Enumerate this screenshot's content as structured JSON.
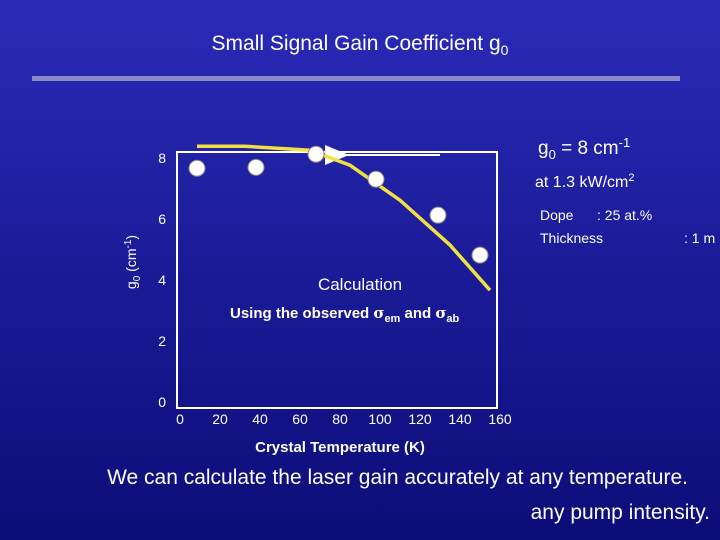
{
  "title": [
    "Small Signal Gain Coefficient  g",
    "0"
  ],
  "chart_data": {
    "type": "line",
    "ylabel": [
      "g",
      "0",
      " (cm",
      "-1",
      ")"
    ],
    "xlabel": "Crystal Temperature (K)",
    "xlim": [
      0,
      160
    ],
    "xticks": [
      0,
      20,
      40,
      60,
      80,
      100,
      120,
      140,
      160
    ],
    "ylim": [
      0,
      8.4
    ],
    "yticks": [
      0,
      2,
      4,
      6,
      8
    ],
    "grid": false,
    "series": [
      {
        "name": "Calculation",
        "type": "line",
        "color": "#f0e040",
        "x": [
          8.5,
          32.5,
          65,
          85,
          110,
          135,
          155
        ],
        "values": [
          8.39,
          8.39,
          8.26,
          7.77,
          6.62,
          5.15,
          3.67
        ]
      },
      {
        "type": "scatter",
        "color": "#ffffff",
        "x": [
          8.5,
          38,
          68,
          98,
          129,
          150
        ],
        "values": [
          7.67,
          7.7,
          8.13,
          7.31,
          6.13,
          4.82
        ]
      }
    ],
    "gain_label": [
      "g",
      "0",
      " = 8 cm",
      "-1"
    ],
    "intensity_label": [
      "at 1.3 kW/cm",
      "2"
    ],
    "note": [
      "Using the observed ",
      "σ",
      "em",
      " and ",
      "σ",
      "ab"
    ],
    "dope": [
      "Dope",
      ": 25 at.%"
    ],
    "thickness": [
      "Thickness",
      ": 1 m"
    ]
  },
  "footer": [
    "We can calculate the laser gain accurately at any temperature.",
    "any pump intensity."
  ]
}
